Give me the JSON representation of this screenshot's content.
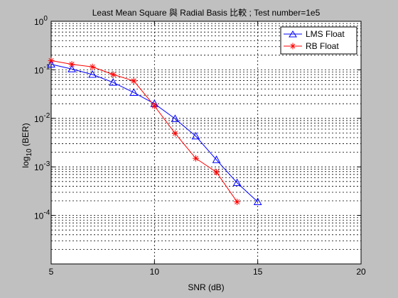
{
  "chart_data": {
    "type": "line",
    "title": "Least Mean Square 與 Radial Basis 比較 ; Test number=1e5",
    "xlabel": "SNR (dB)",
    "ylabel_base": "log",
    "ylabel_sub": "10",
    "ylabel_rest": " (BER)",
    "xlim": [
      5,
      20
    ],
    "ylim": [
      1e-05,
      1
    ],
    "yscale": "log",
    "grid": true,
    "legend_position": "top-right",
    "x_ticks": [
      5,
      10,
      15,
      20
    ],
    "x_tick_labels": [
      "5",
      "10",
      "15",
      "20"
    ],
    "y_ticks": [
      1,
      0.1,
      0.01,
      0.001,
      0.0001
    ],
    "y_tick_base": [
      "10",
      "10",
      "10",
      "10",
      "10"
    ],
    "y_tick_exp": [
      "0",
      "-1",
      "-2",
      "-3",
      "-4"
    ],
    "series": [
      {
        "name": "LMS Float",
        "color": "#0000ff",
        "marker": "triangle",
        "x": [
          5,
          6,
          7,
          8,
          9,
          10,
          11,
          12,
          13,
          14,
          15
        ],
        "y": [
          0.13,
          0.104,
          0.08,
          0.055,
          0.034,
          0.02,
          0.0098,
          0.0043,
          0.0014,
          0.00047,
          0.00019
        ]
      },
      {
        "name": "RB Float",
        "color": "#ff0000",
        "marker": "star",
        "x": [
          5,
          6,
          7,
          8,
          9,
          10,
          11,
          12,
          13,
          14
        ],
        "y": [
          0.155,
          0.13,
          0.115,
          0.08,
          0.059,
          0.018,
          0.0049,
          0.0015,
          0.00078,
          0.00019
        ]
      }
    ]
  }
}
